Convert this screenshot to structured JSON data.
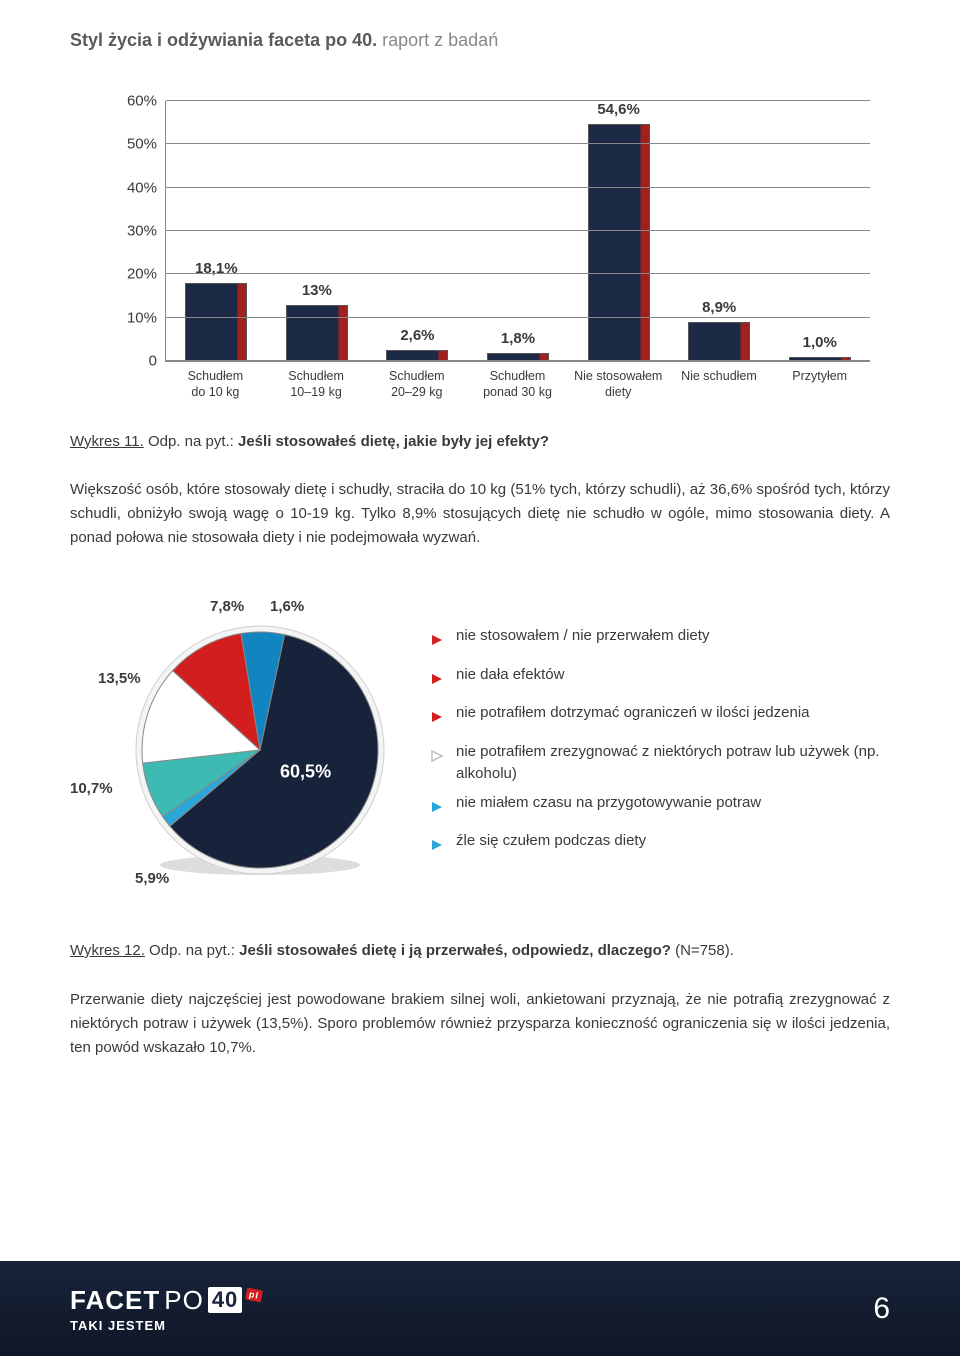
{
  "header": {
    "bold": "Styl życia i odżywiania faceta po 40.",
    "light": " raport z badań"
  },
  "bar_chart": {
    "type": "bar",
    "ylim_max": 60,
    "ytick_step": 10,
    "yticks": [
      "60%",
      "50%",
      "40%",
      "30%",
      "20%",
      "10%",
      "0"
    ],
    "bar_fill": "#1d2a45",
    "bar_accent": "#a02020",
    "grid_color": "#888888",
    "bars": [
      {
        "label": "18,1%",
        "value": 18.1,
        "xlabel1": "Schudłem",
        "xlabel2": "do 10 kg"
      },
      {
        "label": "13%",
        "value": 13.0,
        "xlabel1": "Schudłem",
        "xlabel2": "10–19 kg"
      },
      {
        "label": "2,6%",
        "value": 2.6,
        "xlabel1": "Schudłem",
        "xlabel2": "20–29 kg"
      },
      {
        "label": "1,8%",
        "value": 1.8,
        "xlabel1": "Schudłem",
        "xlabel2": "ponad 30 kg"
      },
      {
        "label": "54,6%",
        "value": 54.6,
        "xlabel1": "Nie stosowałem",
        "xlabel2": "diety"
      },
      {
        "label": "8,9%",
        "value": 8.9,
        "xlabel1": "Nie schudłem",
        "xlabel2": ""
      },
      {
        "label": "1,0%",
        "value": 1.0,
        "xlabel1": "Przytyłem",
        "xlabel2": ""
      }
    ]
  },
  "caption1": {
    "prefix": "Wykres 11.",
    "mid": " Odp. na pyt.: ",
    "bold": "Jeśli stosowałeś dietę, jakie były jej efekty?"
  },
  "para1": "Większość osób, które stosowały dietę i schudły, straciła do 10 kg (51% tych, którzy schudli), aż 36,6% spośród tych, którzy schudli, obniżyło swoją wagę o 10-19 kg. Tylko 8,9% stosujących dietę nie schudło w ogóle, mimo stosowania diety. A ponad połowa nie stosowała diety i nie podejmowała wyzwań.",
  "pie_chart": {
    "type": "pie",
    "background": "#ffffff",
    "stroke": "#888888",
    "slices": [
      {
        "label": "60,5%",
        "value": 60.5,
        "color": "#17223b",
        "label_pos": "inside"
      },
      {
        "label": "1,6%",
        "value": 1.6,
        "color": "#2aa7d8"
      },
      {
        "label": "7,8%",
        "value": 7.8,
        "color": "#3dbab2"
      },
      {
        "label": "13,5%",
        "value": 13.5,
        "color": "#ffffff"
      },
      {
        "label": "10,7%",
        "value": 10.7,
        "color": "#d21e1e"
      },
      {
        "label": "5,9%",
        "value": 5.9,
        "color": "#1085c0"
      }
    ]
  },
  "legend": [
    {
      "color": "#d21e1e",
      "fill": true,
      "text": "nie stosowałem / nie przerwałem diety"
    },
    {
      "color": "#d21e1e",
      "fill": true,
      "text": "nie dała efektów"
    },
    {
      "color": "#d21e1e",
      "fill": true,
      "text": "nie potrafiłem dotrzymać ograniczeń w ilości jedzenia"
    },
    {
      "color": "#bdbdbd",
      "fill": false,
      "text": "nie potrafiłem zrezygnować z niektórych potraw lub używek (np. alkoholu)"
    },
    {
      "color": "#2aa7d8",
      "fill": true,
      "text": "nie miałem czasu na przygotowywanie potraw"
    },
    {
      "color": "#2aa7d8",
      "fill": true,
      "text": "źle się czułem podczas diety"
    }
  ],
  "caption2": {
    "prefix": "Wykres 12.",
    "mid": " Odp. na pyt.:  ",
    "bold": "Jeśli stosowałeś dietę i ją przerwałeś, odpowiedz, dlaczego?",
    "suffix": " (N=758)."
  },
  "para2": "Przerwanie diety najczęściej jest powodowane brakiem silnej woli, ankietowani przyznają, że nie potrafią zrezygnować z niektórych potraw i używek (13,5%). Sporo problemów również przysparza konieczność ograniczenia się w ilości jedzenia, ten powód wskazało 10,7%.",
  "footer": {
    "facet": "FACET",
    "po": "PO",
    "forty": "40",
    "pl": "pl",
    "tagline": "TAKI JESTEM",
    "page": "6"
  }
}
